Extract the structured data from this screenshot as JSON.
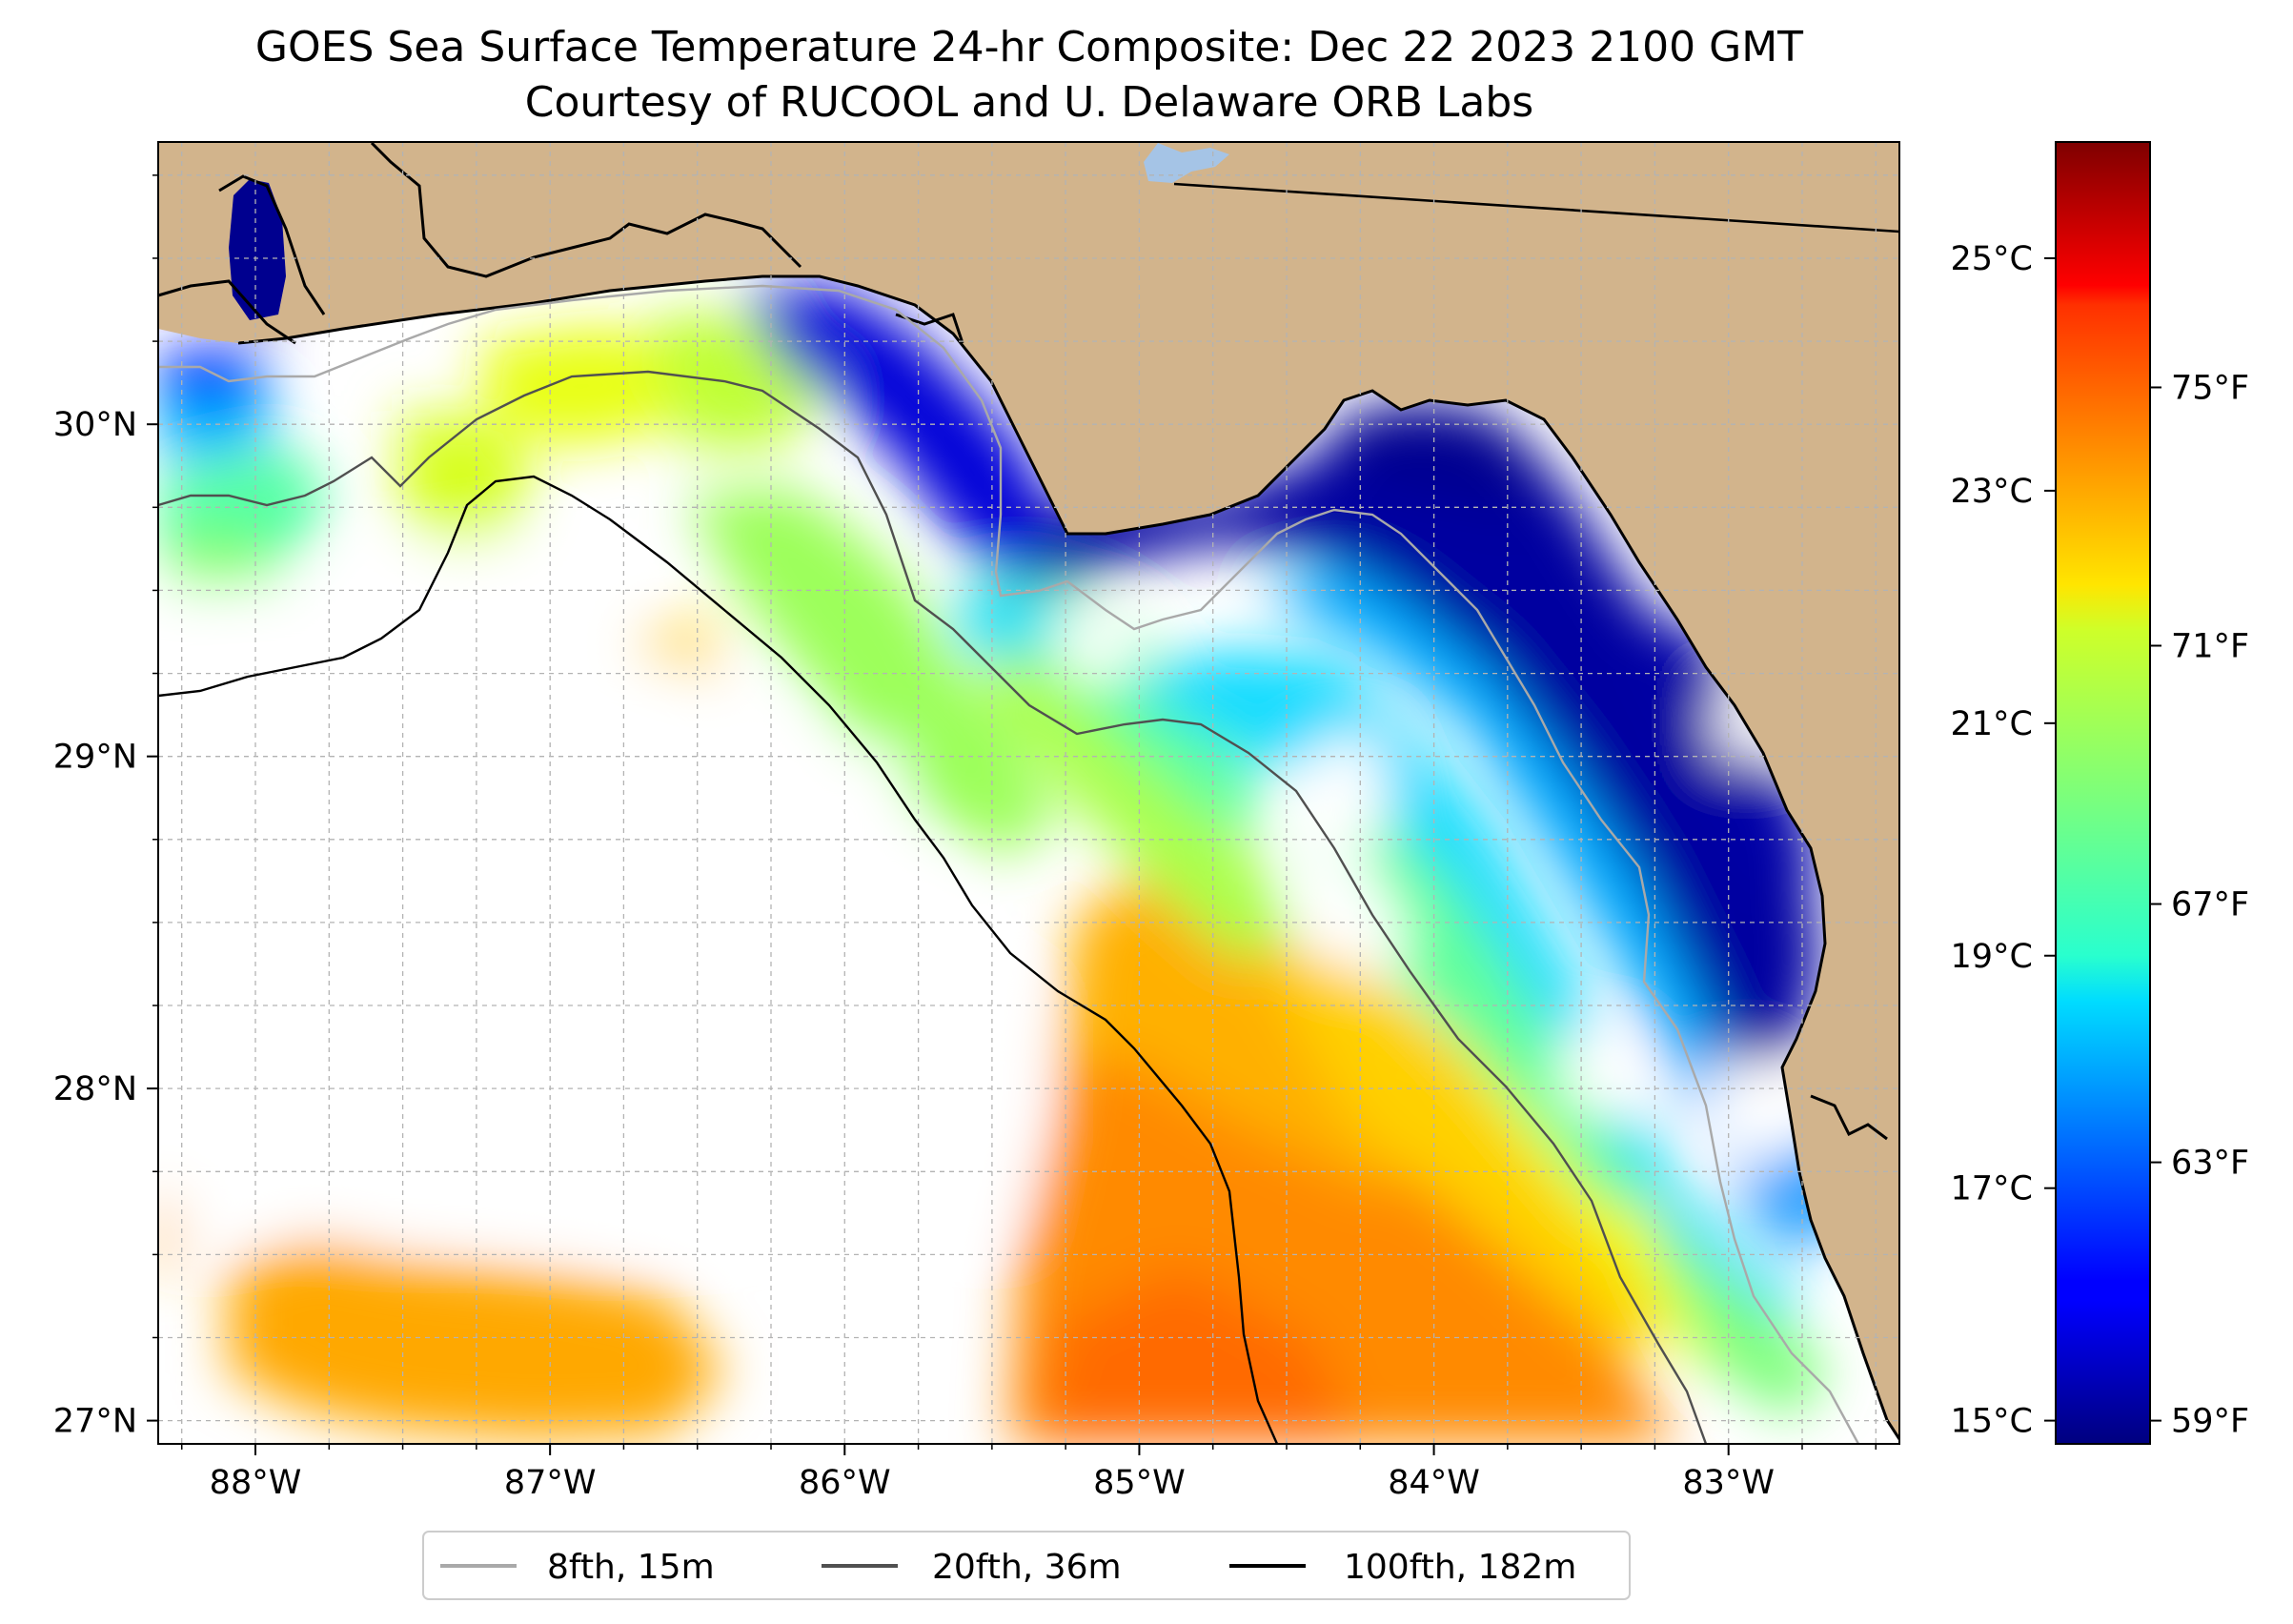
{
  "title": "GOES Sea Surface Temperature 24-hr Composite: Dec 22 2023 2100 GMT",
  "subtitle": "Courtesy of RUCOOL and U. Delaware ORB Labs",
  "map": {
    "lon_range": [
      -88.33,
      -82.42
    ],
    "lat_range": [
      26.93,
      30.85
    ],
    "lon_ticks": [
      {
        "value": -88,
        "label": "88°W"
      },
      {
        "value": -87,
        "label": "87°W"
      },
      {
        "value": -86,
        "label": "86°W"
      },
      {
        "value": -85,
        "label": "85°W"
      },
      {
        "value": -84,
        "label": "84°W"
      },
      {
        "value": -83,
        "label": "83°W"
      }
    ],
    "lat_ticks": [
      {
        "value": 27,
        "label": "27°N"
      },
      {
        "value": 28,
        "label": "28°N"
      },
      {
        "value": 29,
        "label": "29°N"
      },
      {
        "value": 30,
        "label": "30°N"
      }
    ],
    "gridlines": true,
    "colors": {
      "land": "#d2b48c",
      "no_data": "#ffffff",
      "lake": "#a5c4e6",
      "isobath_8fth": "#a9a9a9",
      "isobath_20fth": "#505050",
      "isobath_100fth": "#000000"
    }
  },
  "colorbar": {
    "colormap": "jet",
    "range_c": [
      14.8,
      26.0
    ],
    "celsius_ticks": [
      {
        "value": 15,
        "label": "15°C"
      },
      {
        "value": 17,
        "label": "17°C"
      },
      {
        "value": 19,
        "label": "19°C"
      },
      {
        "value": 21,
        "label": "21°C"
      },
      {
        "value": 23,
        "label": "23°C"
      },
      {
        "value": 25,
        "label": "25°C"
      }
    ],
    "fahrenheit_ticks": [
      {
        "value": 59,
        "label": "59°F"
      },
      {
        "value": 63,
        "label": "63°F"
      },
      {
        "value": 67,
        "label": "67°F"
      },
      {
        "value": 71,
        "label": "71°F"
      },
      {
        "value": 75,
        "label": "75°F"
      }
    ]
  },
  "legend": {
    "placement": "bottom-center",
    "entries": [
      {
        "label": "8fth, 15m",
        "color": "#a9a9a9"
      },
      {
        "label": "20fth, 36m",
        "color": "#505050"
      },
      {
        "label": "100fth, 182m",
        "color": "#000000"
      }
    ]
  }
}
